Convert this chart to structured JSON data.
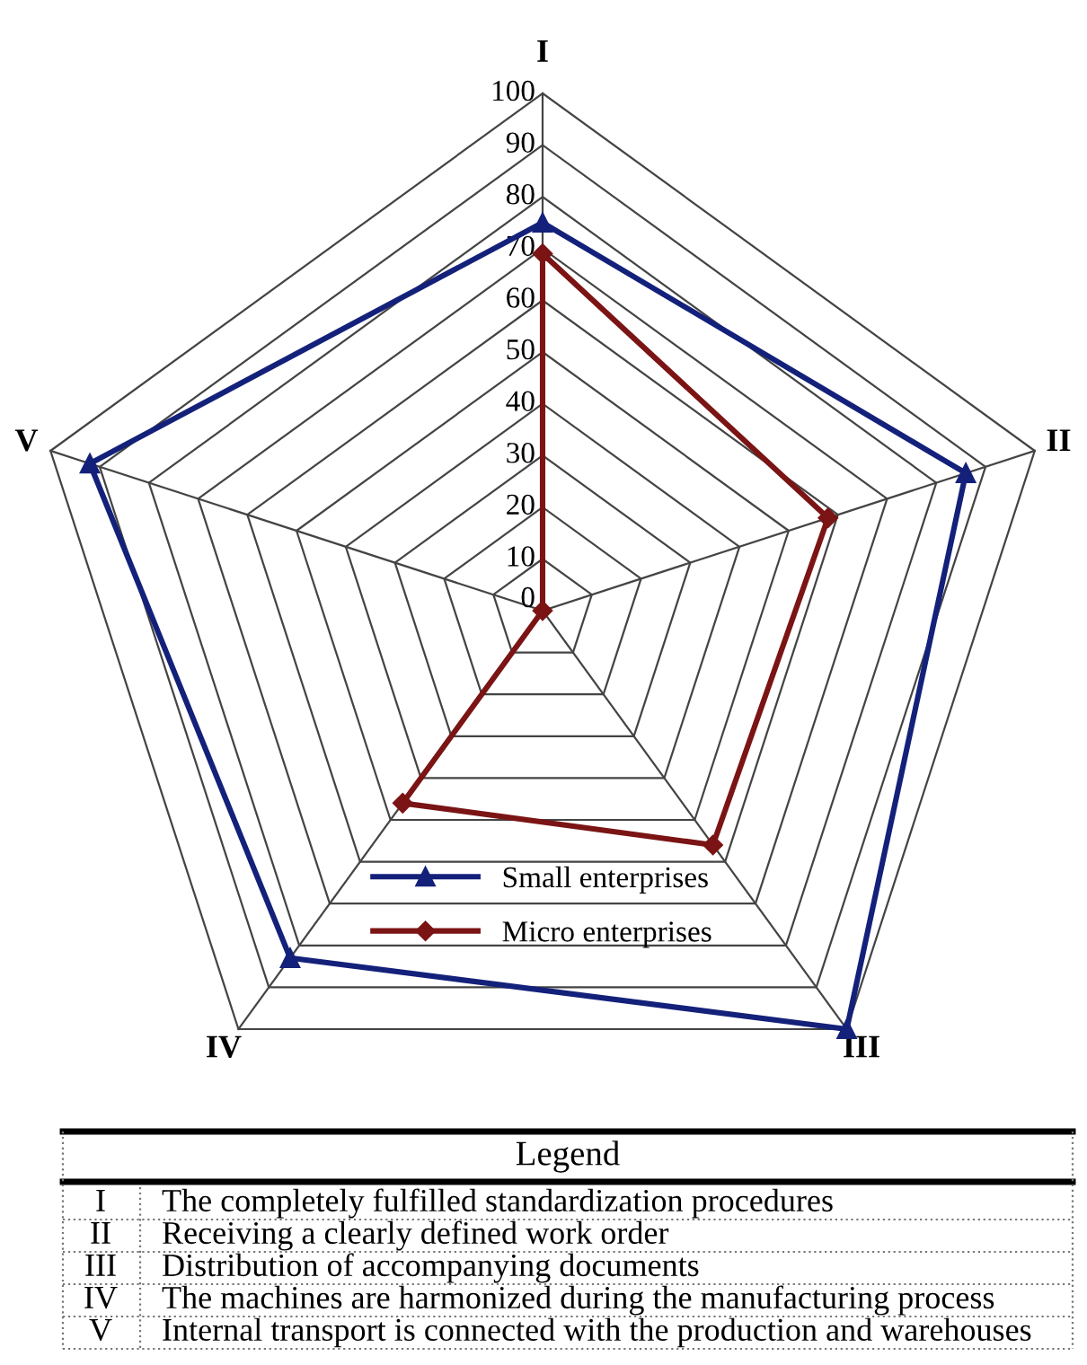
{
  "chart_data": {
    "type": "radar",
    "categories": [
      "I",
      "II",
      "III",
      "IV",
      "V"
    ],
    "series": [
      {
        "name": "Small enterprises",
        "color": "#14217a",
        "marker": "triangle",
        "values": [
          75,
          86,
          100,
          83,
          92
        ]
      },
      {
        "name": "Micro enterprises",
        "color": "#7b1414",
        "marker": "diamond",
        "values": [
          69,
          58,
          56,
          46,
          0
        ]
      }
    ],
    "ylim": [
      0,
      100
    ],
    "yticks": [
      0,
      10,
      20,
      30,
      40,
      50,
      60,
      70,
      80,
      90,
      100
    ],
    "grid": true,
    "legend": "bottom",
    "annotations": [
      "Legend",
      "The completely fulfilled standardization procedures",
      "Receiving a clearly defined work order",
      "Distribution of accompanying documents",
      "The machines are harmonized during the manufacturing process",
      "Internal transport is connected with the production and warehouses"
    ]
  }
}
